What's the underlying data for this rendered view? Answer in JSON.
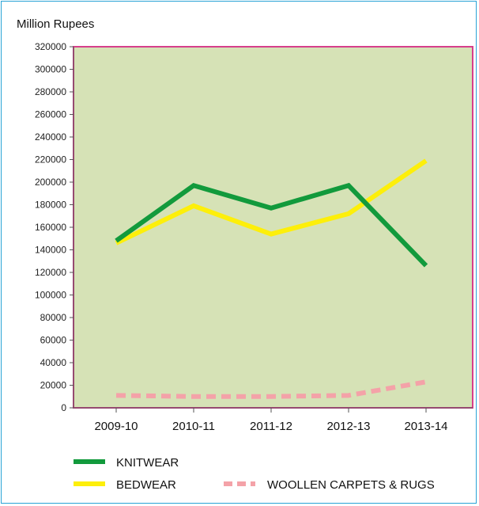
{
  "chart_data": {
    "type": "line",
    "title": "",
    "ylabel": "Million Rupees",
    "xlabel": "",
    "categories": [
      "2009-10",
      "2010-11",
      "2011-12",
      "2012-13",
      "2013-14"
    ],
    "ylim": [
      0,
      320000
    ],
    "yticks": [
      0,
      20000,
      40000,
      60000,
      80000,
      100000,
      120000,
      140000,
      160000,
      180000,
      200000,
      220000,
      240000,
      260000,
      280000,
      300000,
      320000
    ],
    "series": [
      {
        "name": "KNITWEAR",
        "values": [
          148000,
          197000,
          177000,
          197000,
          126000
        ],
        "color": "#129a3c",
        "dashed": false
      },
      {
        "name": "BEDWEAR",
        "values": [
          146000,
          179000,
          154000,
          172000,
          219000
        ],
        "color": "#fdef0a",
        "dashed": false
      },
      {
        "name": "WOOLLEN CARPETS & RUGS",
        "values": [
          11000,
          10000,
          10000,
          11000,
          23000
        ],
        "color": "#f4a2a8",
        "dashed": true
      }
    ],
    "plot_background": "#d6e2b6",
    "plot_border": "#d63f8c",
    "legend_position": "bottom"
  }
}
